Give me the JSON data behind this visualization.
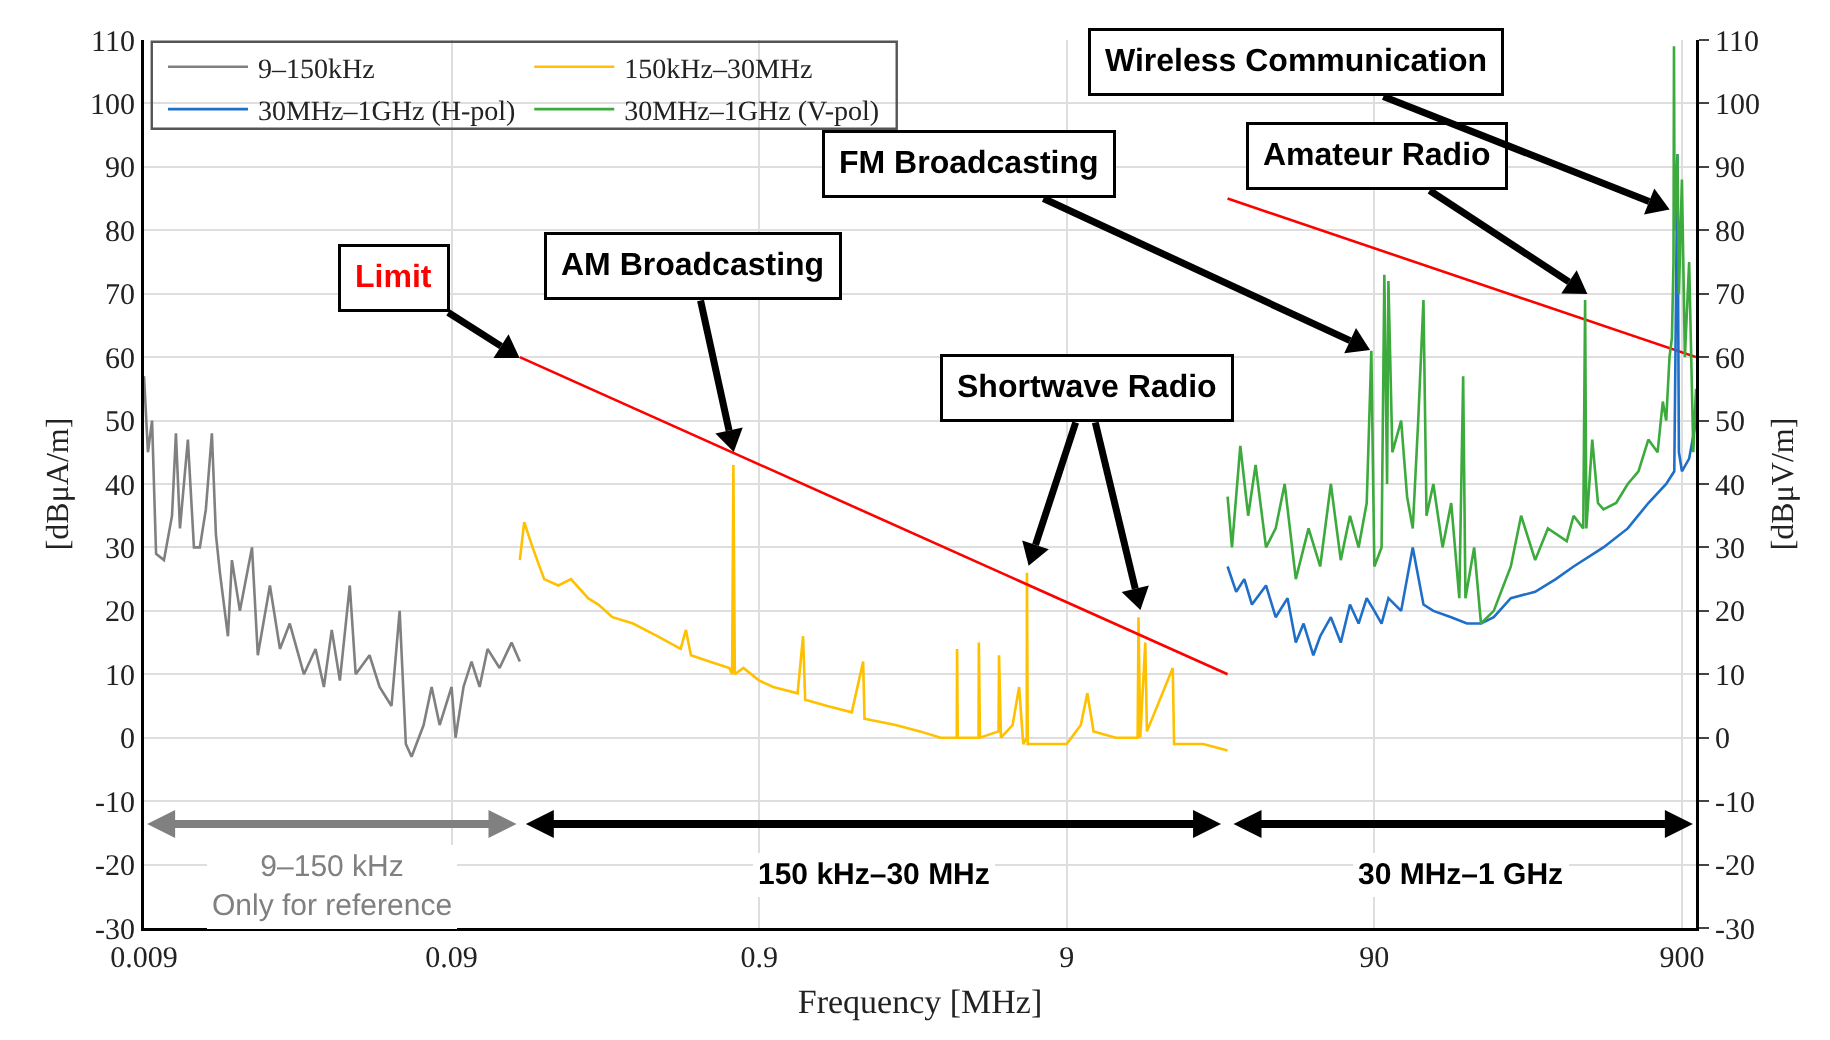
{
  "chart_data": {
    "type": "line",
    "xlabel": "Frequency [MHz]",
    "ylabel": "[dBμA/m]",
    "y2label": "[dBμV/m]",
    "log": "x",
    "grid": true,
    "legend": "top left",
    "xlim": [
      0.009,
      1000
    ],
    "xticks": [
      0.009,
      0.09,
      0.9,
      9,
      90,
      900
    ],
    "ylim": [
      -30,
      110
    ],
    "yticks": [
      -30,
      -20,
      -10,
      0,
      10,
      20,
      30,
      40,
      50,
      60,
      70,
      80,
      90,
      100,
      110
    ],
    "y2lim": [
      -30,
      110
    ],
    "y2ticks": [
      -30,
      -20,
      -10,
      0,
      10,
      20,
      30,
      40,
      50,
      60,
      70,
      80,
      90,
      100,
      110
    ],
    "series": [
      {
        "name": "9–150kHz",
        "color": "#808080",
        "x": [
          0.009,
          0.00927,
          0.00956,
          0.00985,
          0.01045,
          0.0111,
          0.01143,
          0.01178,
          0.0125,
          0.01308,
          0.01367,
          0.0143,
          0.01496,
          0.01542,
          0.01589,
          0.01687,
          0.01738,
          0.01845,
          0.0202,
          0.0211,
          0.0231,
          0.0249,
          0.0268,
          0.0298,
          0.0325,
          0.0346,
          0.0367,
          0.039,
          0.042,
          0.0439,
          0.0487,
          0.0525,
          0.0574,
          0.061,
          0.0639,
          0.0667,
          0.073,
          0.0775,
          0.0823,
          0.09,
          0.0927,
          0.0984,
          0.1045,
          0.111,
          0.1178,
          0.1289,
          0.141,
          0.15
        ],
        "values": [
          57,
          45,
          50,
          29,
          28,
          35,
          48,
          33,
          47,
          30,
          30,
          36,
          48,
          32,
          26,
          16,
          28,
          20,
          30,
          13,
          24,
          14,
          18,
          10,
          14,
          8,
          17,
          9,
          24,
          10,
          13,
          8,
          5,
          20,
          -1,
          -3,
          2,
          8,
          2,
          8,
          0,
          8,
          12,
          8,
          14,
          11,
          15,
          12
        ]
      },
      {
        "name": "150kHz–30MHz",
        "color": "#ffc000",
        "x": [
          0.15,
          0.155,
          0.165,
          0.18,
          0.2,
          0.22,
          0.25,
          0.27,
          0.3,
          0.35,
          0.42,
          0.5,
          0.52,
          0.54,
          0.62,
          0.72,
          0.735,
          0.742,
          0.75,
          0.8,
          0.9,
          1.0,
          1.2,
          1.25,
          1.27,
          1.5,
          1.8,
          1.96,
          1.98,
          2.5,
          3.0,
          3.5,
          3.95,
          3.96,
          3.98,
          4.65,
          4.66,
          4.7,
          5.4,
          5.42,
          5.5,
          6.0,
          6.3,
          6.5,
          6.67,
          6.68,
          6.72,
          8,
          9,
          10,
          10.5,
          11,
          13,
          15.3,
          15.4,
          15.6,
          16.2,
          16.4,
          19.9,
          20.1,
          25,
          30
        ],
        "values": [
          28,
          34,
          30,
          25,
          24,
          25,
          22,
          21,
          19,
          18,
          16,
          14,
          17,
          13,
          12,
          11,
          10,
          43,
          10,
          11,
          9,
          8,
          7,
          16,
          6,
          5,
          4,
          12,
          3,
          2,
          1,
          0,
          0,
          14,
          0,
          0,
          15,
          0,
          1,
          13,
          0,
          2,
          8,
          -1,
          0,
          26,
          -1,
          -1,
          -1,
          2,
          7,
          1,
          0,
          0,
          19,
          0,
          15,
          1,
          11,
          -1,
          -1,
          -2
        ]
      },
      {
        "name": "30MHz–1GHz (H-pol)",
        "color": "#1f6fc8",
        "axis": "y2",
        "x": [
          30,
          32,
          34,
          36,
          40,
          43,
          47,
          50,
          53,
          57,
          60,
          65,
          70,
          75,
          80,
          85,
          90,
          95,
          100,
          110,
          120,
          130,
          140,
          160,
          180,
          200,
          220,
          250,
          300,
          350,
          400,
          500,
          600,
          700,
          800,
          850,
          870,
          880,
          900,
          950,
          1000
        ],
        "values": [
          27,
          23,
          25,
          21,
          24,
          19,
          22,
          15,
          18,
          13,
          16,
          19,
          15,
          21,
          18,
          22,
          20,
          18,
          22,
          20,
          30,
          21,
          20,
          19,
          18,
          18,
          19,
          22,
          23,
          25,
          27,
          30,
          33,
          37,
          40,
          42,
          92,
          45,
          42,
          44,
          50
        ]
      },
      {
        "name": "30MHz–1GHz (V-pol)",
        "color": "#3daa3d",
        "axis": "y2",
        "x": [
          30,
          31,
          33,
          35,
          37,
          40,
          43,
          46,
          50,
          55,
          60,
          65,
          70,
          75,
          80,
          85,
          88,
          90,
          95,
          97,
          99,
          100,
          103,
          110,
          115,
          120,
          125,
          130,
          133,
          140,
          150,
          160,
          170,
          175,
          178,
          190,
          200,
          220,
          250,
          270,
          300,
          330,
          380,
          400,
          430,
          436,
          440,
          460,
          480,
          500,
          550,
          600,
          650,
          700,
          750,
          780,
          800,
          820,
          835,
          845,
          848,
          852,
          870,
          880,
          900,
          920,
          950,
          980,
          1000
        ],
        "values": [
          38,
          30,
          46,
          35,
          43,
          30,
          33,
          40,
          25,
          33,
          27,
          40,
          28,
          35,
          30,
          37,
          61,
          27,
          30,
          73,
          40,
          72,
          45,
          50,
          38,
          33,
          50,
          69,
          35,
          40,
          30,
          37,
          22,
          57,
          22,
          30,
          18,
          20,
          27,
          35,
          28,
          33,
          31,
          35,
          33,
          69,
          33,
          47,
          37,
          36,
          37,
          40,
          42,
          47,
          45,
          53,
          50,
          60,
          63,
          75,
          109,
          80,
          92,
          70,
          88,
          60,
          75,
          45,
          55
        ]
      },
      {
        "color": "#ff0000",
        "x": [
          0.15,
          30
        ],
        "values": [
          60,
          10
        ]
      },
      {
        "color": "#ff0000",
        "x": [
          30,
          1000
        ],
        "values": [
          85,
          60
        ]
      }
    ],
    "annotations": [
      "Limit",
      "AM Broadcasting",
      "Shortwave Radio",
      "FM Broadcasting",
      "Amateur Radio",
      "Wireless Communication",
      "9–150 kHz\nOnly for reference",
      "150 kHz–30 MHz",
      "30 MHz–1 GHz"
    ]
  }
}
